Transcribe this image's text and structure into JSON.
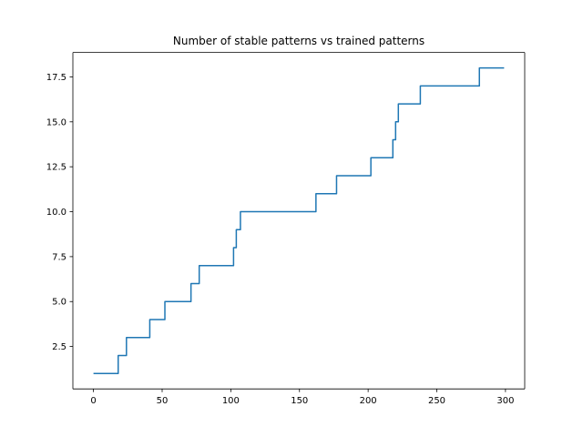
{
  "chart_data": {
    "type": "line",
    "title": "Number of stable patterns vs trained patterns",
    "xlabel": "",
    "ylabel": "",
    "xlim": [
      -15,
      314
    ],
    "ylim": [
      0.14,
      18.86
    ],
    "x_ticks": [
      0,
      50,
      100,
      150,
      200,
      250,
      300
    ],
    "x_tick_labels": [
      "0",
      "50",
      "100",
      "150",
      "200",
      "250",
      "300"
    ],
    "y_ticks": [
      2.5,
      5.0,
      7.5,
      10.0,
      12.5,
      15.0,
      17.5
    ],
    "y_tick_labels": [
      "2.5",
      "5.0",
      "7.5",
      "10.0",
      "12.5",
      "15.0",
      "17.5"
    ],
    "grid": false,
    "line_color": "#1f77b4",
    "series": [
      {
        "step_points": [
          [
            0,
            1
          ],
          [
            18,
            2
          ],
          [
            24,
            3
          ],
          [
            41,
            4
          ],
          [
            52,
            5
          ],
          [
            71,
            6
          ],
          [
            77,
            7
          ],
          [
            102,
            8
          ],
          [
            104,
            9
          ],
          [
            107,
            10
          ],
          [
            162,
            11
          ],
          [
            177,
            12
          ],
          [
            202,
            13
          ],
          [
            218,
            14
          ],
          [
            220,
            15
          ],
          [
            222,
            16
          ],
          [
            238,
            17
          ],
          [
            281,
            18
          ],
          [
            299,
            18
          ]
        ]
      }
    ]
  }
}
